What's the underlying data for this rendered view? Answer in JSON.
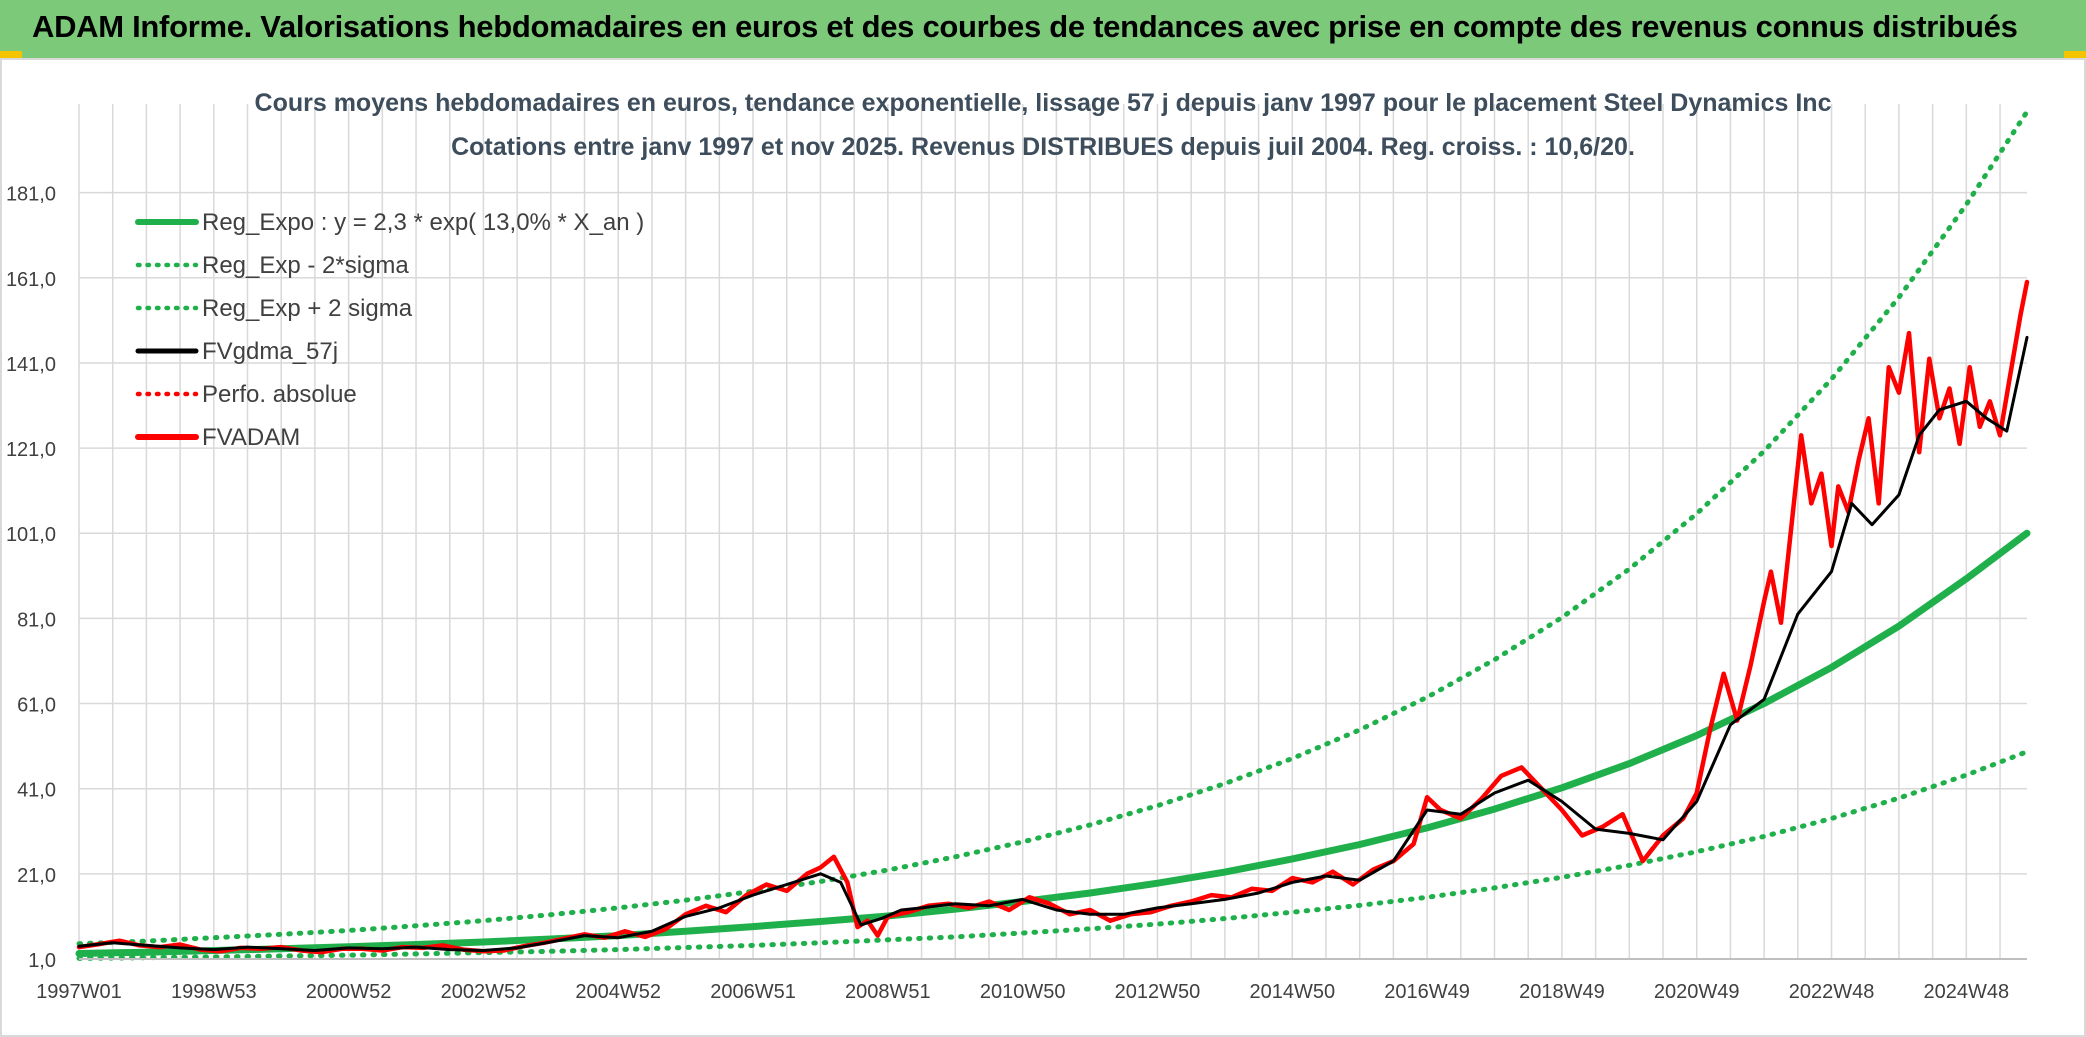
{
  "header": {
    "title": "ADAM Informe. Valorisations hebdomadaires en euros et des courbes de tendances avec prise en compte des revenus connus distribués"
  },
  "colors": {
    "banner": "#7dc97a",
    "trend_green": "#1fb04b",
    "moving_avg": "#000000",
    "fvadam_red": "#ff0000",
    "grid": "#d9d9d9",
    "corner_accent": "#f5c400"
  },
  "chart_data": {
    "type": "line",
    "title": "Cours moyens hebdomadaires en euros, tendance exponentielle, lissage 57 j depuis janv 1997 pour le placement Steel Dynamics Inc",
    "subtitle": "Cotations entre janv 1997 et nov 2025. Revenus DISTRIBUES depuis juil 2004. Reg. croiss. : 10,6/20.",
    "xlabel": "",
    "ylabel": "",
    "x_range": [
      1997.0,
      2025.9
    ],
    "ylim": [
      1.0,
      199.0
    ],
    "y_ticks": [
      "1,0",
      "21,0",
      "41,0",
      "61,0",
      "81,0",
      "101,0",
      "121,0",
      "141,0",
      "161,0",
      "181,0"
    ],
    "x_ticks": [
      {
        "label": "1997W01",
        "x": 1997.0
      },
      {
        "label": "1998W53",
        "x": 1999.0
      },
      {
        "label": "2000W52",
        "x": 2001.0
      },
      {
        "label": "2002W52",
        "x": 2003.0
      },
      {
        "label": "2004W52",
        "x": 2005.0
      },
      {
        "label": "2006W51",
        "x": 2007.0
      },
      {
        "label": "2008W51",
        "x": 2009.0
      },
      {
        "label": "2010W50",
        "x": 2011.0
      },
      {
        "label": "2012W50",
        "x": 2013.0
      },
      {
        "label": "2014W50",
        "x": 2015.0
      },
      {
        "label": "2016W49",
        "x": 2017.0
      },
      {
        "label": "2018W49",
        "x": 2019.0
      },
      {
        "label": "2020W49",
        "x": 2021.0
      },
      {
        "label": "2022W48",
        "x": 2023.0
      },
      {
        "label": "2024W48",
        "x": 2025.0
      }
    ],
    "grid": true,
    "legend_position": "top-left",
    "series": [
      {
        "name": "Reg_Expo : y = 2,3 * exp( 13,0% *  X_an )",
        "style": "solid-thick",
        "color": "#1fb04b",
        "x": [
          1997.0,
          1998.0,
          1999.0,
          2000.0,
          2001.0,
          2002.0,
          2003.0,
          2004.0,
          2005.0,
          2006.0,
          2007.0,
          2008.0,
          2009.0,
          2010.0,
          2011.0,
          2012.0,
          2013.0,
          2014.0,
          2015.0,
          2016.0,
          2017.0,
          2018.0,
          2019.0,
          2020.0,
          2021.0,
          2022.0,
          2023.0,
          2024.0,
          2025.0,
          2025.9
        ],
        "y": [
          2.3,
          2.6,
          3.0,
          3.4,
          3.9,
          4.4,
          5.0,
          5.7,
          6.5,
          7.5,
          8.6,
          9.8,
          11.1,
          12.7,
          14.5,
          16.5,
          18.8,
          21.4,
          24.5,
          27.9,
          31.8,
          36.2,
          41.2,
          46.9,
          53.5,
          61.0,
          69.5,
          79.2,
          90.3,
          101.0
        ]
      },
      {
        "name": "Reg_Exp - 2*sigma",
        "style": "dotted",
        "color": "#1fb04b",
        "x": [
          1997.0,
          1998.0,
          1999.0,
          2000.0,
          2001.0,
          2002.0,
          2003.0,
          2004.0,
          2005.0,
          2006.0,
          2007.0,
          2008.0,
          2009.0,
          2010.0,
          2011.0,
          2012.0,
          2013.0,
          2014.0,
          2015.0,
          2016.0,
          2017.0,
          2018.0,
          2019.0,
          2020.0,
          2021.0,
          2022.0,
          2023.0,
          2024.0,
          2025.0,
          2025.9
        ],
        "y": [
          1.15,
          1.3,
          1.5,
          1.7,
          1.9,
          2.2,
          2.5,
          2.8,
          3.2,
          3.7,
          4.2,
          4.8,
          5.5,
          6.2,
          7.1,
          8.1,
          9.2,
          10.5,
          12.0,
          13.6,
          15.5,
          17.7,
          20.2,
          23.0,
          26.2,
          29.8,
          34.0,
          38.8,
          44.2,
          49.7
        ]
      },
      {
        "name": "Reg_Exp + 2 sigma",
        "style": "dotted",
        "color": "#1fb04b",
        "x": [
          1997.0,
          1998.0,
          1999.0,
          2000.0,
          2001.0,
          2002.0,
          2003.0,
          2004.0,
          2005.0,
          2006.0,
          2007.0,
          2008.0,
          2009.0,
          2010.0,
          2011.0,
          2012.0,
          2013.0,
          2014.0,
          2015.0,
          2016.0,
          2017.0,
          2018.0,
          2019.0,
          2020.0,
          2021.0,
          2022.0,
          2023.0,
          2024.0,
          2025.0,
          2025.9
        ],
        "y": [
          4.6,
          5.2,
          6.0,
          6.8,
          7.7,
          8.8,
          10.0,
          11.4,
          13.0,
          14.8,
          16.9,
          19.2,
          21.9,
          25.0,
          28.5,
          32.5,
          37.0,
          42.2,
          48.1,
          54.8,
          62.5,
          71.3,
          81.2,
          92.6,
          105.6,
          120.3,
          137.2,
          156.4,
          178.2,
          200.0
        ]
      },
      {
        "name": "FVgdma_57j",
        "style": "solid",
        "color": "#000000",
        "x": [
          1997.0,
          1997.5,
          1998.0,
          1998.5,
          1999.0,
          1999.5,
          2000.0,
          2000.5,
          2001.0,
          2001.5,
          2002.0,
          2002.5,
          2003.0,
          2003.5,
          2004.0,
          2004.5,
          2005.0,
          2005.5,
          2006.0,
          2006.5,
          2007.0,
          2007.5,
          2008.0,
          2008.3,
          2008.6,
          2008.9,
          2009.2,
          2009.5,
          2010.0,
          2010.5,
          2011.0,
          2011.5,
          2012.0,
          2012.5,
          2013.0,
          2013.5,
          2014.0,
          2014.5,
          2015.0,
          2015.5,
          2016.0,
          2016.5,
          2017.0,
          2017.5,
          2018.0,
          2018.5,
          2019.0,
          2019.5,
          2020.0,
          2020.5,
          2021.0,
          2021.5,
          2022.0,
          2022.2,
          2022.5,
          2022.8,
          2023.0,
          2023.3,
          2023.6,
          2024.0,
          2024.3,
          2024.6,
          2025.0,
          2025.3,
          2025.6,
          2025.9
        ],
        "y": [
          4.0,
          4.8,
          4.2,
          3.6,
          3.2,
          3.8,
          3.4,
          3.0,
          3.6,
          3.4,
          3.8,
          3.2,
          3.0,
          3.6,
          5.0,
          6.5,
          6.0,
          7.5,
          11.0,
          13.0,
          16.0,
          18.5,
          21.0,
          19.0,
          9.0,
          10.5,
          12.5,
          13.0,
          14.0,
          13.5,
          15.0,
          12.5,
          11.5,
          11.5,
          13.0,
          14.0,
          15.0,
          16.5,
          19.0,
          20.5,
          19.5,
          24.0,
          36.0,
          35.0,
          40.0,
          43.0,
          38.0,
          31.5,
          30.5,
          29.0,
          38.0,
          56.0,
          62.0,
          70.0,
          82.0,
          88.0,
          92.0,
          108.0,
          103.0,
          110.0,
          124.0,
          130.0,
          132.0,
          128.0,
          125.0,
          147.0
        ]
      },
      {
        "name": "Perfo. absolue",
        "style": "dotted",
        "color": "#ff0000",
        "x": [],
        "y": []
      },
      {
        "name": "FVADAM",
        "style": "solid-thick",
        "color": "#ff0000",
        "x": [
          1997.0,
          1997.3,
          1997.6,
          1997.9,
          1998.2,
          1998.5,
          1998.8,
          1999.1,
          1999.4,
          1999.7,
          2000.0,
          2000.3,
          2000.6,
          2000.9,
          2001.2,
          2001.5,
          2001.8,
          2002.1,
          2002.4,
          2002.7,
          2003.0,
          2003.3,
          2003.6,
          2003.9,
          2004.2,
          2004.5,
          2004.8,
          2005.1,
          2005.4,
          2005.7,
          2006.0,
          2006.3,
          2006.6,
          2006.9,
          2007.2,
          2007.5,
          2007.8,
          2008.0,
          2008.2,
          2008.4,
          2008.55,
          2008.7,
          2008.85,
          2009.0,
          2009.3,
          2009.6,
          2009.9,
          2010.2,
          2010.5,
          2010.8,
          2011.1,
          2011.4,
          2011.7,
          2012.0,
          2012.3,
          2012.6,
          2012.9,
          2013.2,
          2013.5,
          2013.8,
          2014.1,
          2014.4,
          2014.7,
          2015.0,
          2015.3,
          2015.6,
          2015.9,
          2016.2,
          2016.5,
          2016.8,
          2017.0,
          2017.2,
          2017.5,
          2017.8,
          2018.1,
          2018.4,
          2018.7,
          2019.0,
          2019.3,
          2019.6,
          2019.9,
          2020.2,
          2020.5,
          2020.8,
          2021.0,
          2021.2,
          2021.4,
          2021.6,
          2021.8,
          2022.0,
          2022.1,
          2022.25,
          2022.4,
          2022.55,
          2022.7,
          2022.85,
          2023.0,
          2023.1,
          2023.25,
          2023.4,
          2023.55,
          2023.7,
          2023.85,
          2024.0,
          2024.15,
          2024.3,
          2024.45,
          2024.6,
          2024.75,
          2024.9,
          2025.05,
          2025.2,
          2025.35,
          2025.5,
          2025.65,
          2025.8,
          2025.9
        ],
        "y": [
          3.8,
          4.5,
          5.3,
          4.2,
          3.8,
          4.4,
          3.2,
          2.8,
          3.6,
          3.4,
          3.8,
          3.0,
          2.6,
          3.4,
          3.4,
          3.0,
          3.8,
          3.6,
          4.2,
          3.2,
          2.8,
          3.0,
          4.0,
          4.8,
          5.8,
          6.8,
          6.0,
          7.5,
          6.2,
          8.0,
          11.5,
          13.5,
          12.0,
          16.0,
          18.5,
          17.0,
          21.0,
          22.5,
          25.0,
          19.0,
          8.5,
          10.0,
          6.5,
          11.0,
          12.0,
          13.5,
          14.0,
          13.0,
          14.5,
          12.5,
          15.5,
          14.0,
          11.5,
          12.5,
          10.0,
          11.5,
          12.0,
          13.5,
          14.5,
          16.0,
          15.5,
          17.5,
          17.0,
          20.0,
          19.0,
          21.5,
          18.5,
          22.0,
          24.0,
          28.0,
          39.0,
          36.0,
          34.0,
          38.5,
          44.0,
          46.0,
          41.0,
          36.0,
          30.0,
          32.0,
          35.0,
          24.0,
          30.0,
          34.0,
          40.0,
          55.0,
          68.0,
          57.0,
          70.0,
          85.0,
          92.0,
          80.0,
          102.0,
          124.0,
          108.0,
          115.0,
          98.0,
          112.0,
          106.0,
          118.0,
          128.0,
          108.0,
          140.0,
          134.0,
          148.0,
          120.0,
          142.0,
          128.0,
          135.0,
          122.0,
          140.0,
          126.0,
          132.0,
          124.0,
          138.0,
          152.0,
          160.0
        ]
      }
    ]
  }
}
